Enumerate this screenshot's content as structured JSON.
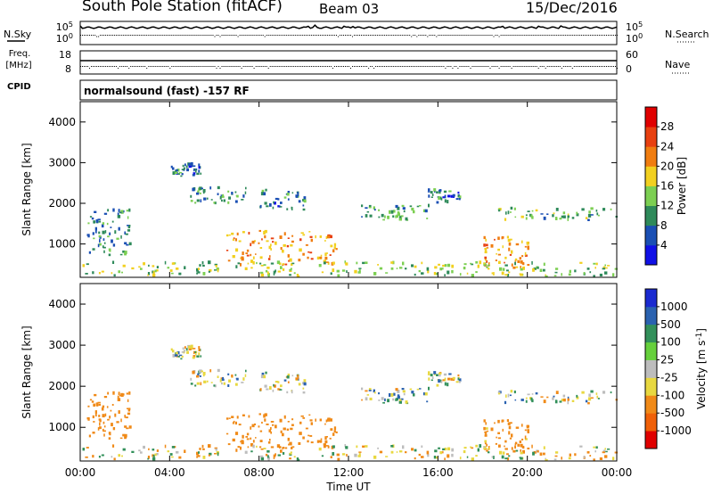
{
  "header": {
    "title": "South Pole Station (fitACF)",
    "beam": "Beam 03",
    "date": "15/Dec/2016"
  },
  "chart_data": {
    "type": "heatmap",
    "title": "South Pole Station (fitACF)",
    "x": {
      "label": "Time UT",
      "range": [
        0,
        24
      ],
      "ticks": [
        0,
        4,
        8,
        12,
        16,
        20,
        24
      ],
      "tick_labels": [
        "00:00",
        "04:00",
        "08:00",
        "12:00",
        "16:00",
        "20:00",
        "00:00"
      ]
    },
    "params": {
      "nsky": {
        "label": "N.Sky",
        "tick_labels": [
          "10^5",
          "10^0"
        ],
        "right_tick_labels": [
          "10^5",
          "10^0"
        ]
      },
      "nsearch_label": "N.Search",
      "freq": {
        "label": "Freq.",
        "unit": "[MHz]",
        "ticks": [
          18,
          8
        ],
        "tick_labels": [
          "18",
          "8"
        ]
      },
      "nave": {
        "label": "Nave",
        "ticks": [
          60,
          0
        ],
        "tick_labels": [
          "60",
          "0"
        ]
      },
      "cpid_label": "CPID",
      "cpid_text": "normalsound (fast) -157 RF"
    },
    "panels": [
      {
        "name": "power",
        "ylabel": "Slant Range [km]",
        "ylim": [
          180,
          4500
        ],
        "yticks": [
          1000,
          2000,
          3000,
          4000
        ],
        "ytick_labels": [
          "1000",
          "2000",
          "3000",
          "4000"
        ],
        "colorbar": {
          "label": "Power [dB]",
          "ticks": [
            4,
            8,
            12,
            16,
            20,
            24,
            28
          ],
          "tick_labels": [
            "4",
            "8",
            "12",
            "16",
            "20",
            "24",
            "28"
          ],
          "colors": [
            "#1010e6",
            "#1a4fb4",
            "#2e8a5a",
            "#7ccf52",
            "#f2d020",
            "#f07d10",
            "#e84010",
            "#e00000"
          ]
        }
      },
      {
        "name": "velocity",
        "ylabel": "Slant Range [km]",
        "ylim": [
          180,
          4500
        ],
        "yticks": [
          1000,
          2000,
          3000,
          4000
        ],
        "ytick_labels": [
          "1000",
          "2000",
          "3000",
          "4000"
        ],
        "colorbar": {
          "label": "Velocity [m s^-1]",
          "ticks": [
            1000,
            500,
            100,
            25,
            -25,
            -100,
            -500,
            -1000
          ],
          "tick_labels": [
            "1000",
            "500",
            "100",
            "25",
            "-25",
            "-100",
            "-500",
            "-1000"
          ],
          "colors": [
            "#1a2ad0",
            "#2a62b0",
            "#32905a",
            "#66d03c",
            "#bdbdbd",
            "#e8d840",
            "#f08a18",
            "#f06008",
            "#e00000"
          ]
        }
      }
    ],
    "echo_regions": [
      {
        "t": [
          0.3,
          2.2
        ],
        "r": [
          700,
          1800
        ],
        "power": 9,
        "velocity": -300
      },
      {
        "t": [
          4.0,
          5.5
        ],
        "r": [
          2650,
          2950
        ],
        "power": 8,
        "velocity": -30
      },
      {
        "t": [
          4.8,
          7.5
        ],
        "r": [
          1950,
          2350
        ],
        "power": 10,
        "velocity": 0
      },
      {
        "t": [
          6.5,
          11.5
        ],
        "r": [
          450,
          1300
        ],
        "power": 21,
        "velocity": -250
      },
      {
        "t": [
          8.0,
          10.0
        ],
        "r": [
          1800,
          2300
        ],
        "power": 8,
        "velocity": -30
      },
      {
        "t": [
          12.5,
          15.5
        ],
        "r": [
          1550,
          1950
        ],
        "power": 11,
        "velocity": 10
      },
      {
        "t": [
          15.5,
          17.0
        ],
        "r": [
          1900,
          2300
        ],
        "power": 8,
        "velocity": -20
      },
      {
        "t": [
          18.0,
          20.0
        ],
        "r": [
          350,
          1150
        ],
        "power": 22,
        "velocity": -200
      },
      {
        "t": [
          18.5,
          24.0
        ],
        "r": [
          1550,
          1850
        ],
        "power": 12,
        "velocity": 5
      },
      {
        "t": [
          0.0,
          24.0
        ],
        "r": [
          180,
          520
        ],
        "power": 14,
        "velocity": -60
      }
    ]
  }
}
